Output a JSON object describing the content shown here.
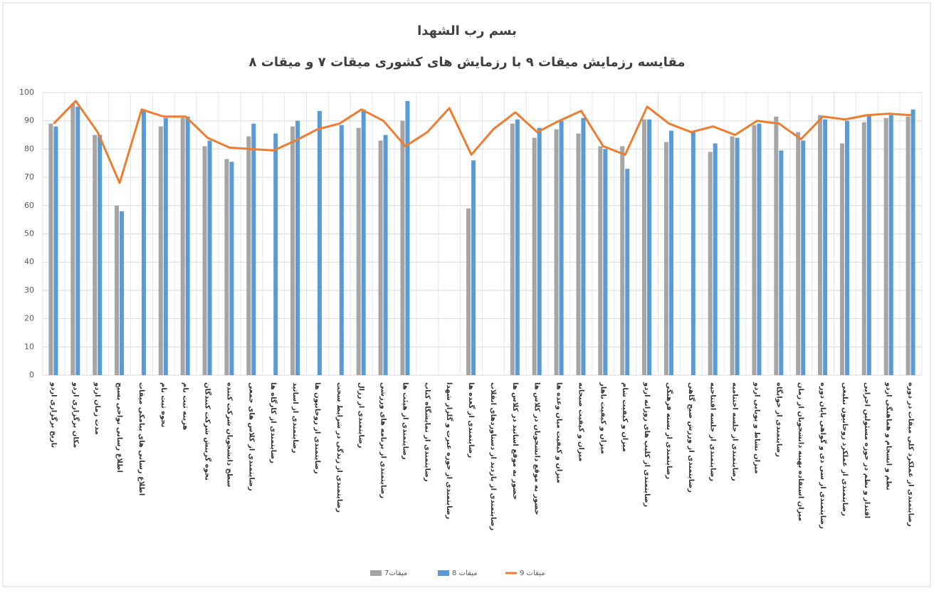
{
  "chart_data": {
    "type": "bar_line",
    "title": "بسم رب الشهدا",
    "subtitle": "مقایسه  رزمایش میقات ۹ با رزمایش های کشوری میقات ۷ و میقات ۸",
    "categories": [
      "تاریخ برگزاری اردو",
      "مکان برگزاری اردو",
      "مدت زمان اردو",
      "اطلاع رسانی نواحی بسیج",
      "اطلاع رسانی های پیامکی میقات",
      "نحوه ثبت نام",
      "هزینه ثبت نام",
      "نحوه گزینش شرکت کنندگان",
      "سطح دانشجویان شرکت کننده",
      "رضایتمندی از کلاس های جمعی",
      "رضایتمندی از کارگاه ها",
      "رضایتمندی از اساتید",
      "رضایتمندی از روحانیون ها",
      "رضایتمندی از زندگی در شرایط سخت",
      "رضایتمندی از رزال",
      "رضایتمندی از برنامه های ورزشی",
      "رضایتمندی از هیئت ها",
      "رضایتمندی از نمایشگاه کتاب",
      "رضایتمندی از حوزه عبرت و گلزار شهدا",
      "رضایتمندی از گعده ها",
      "رضایتمندی از بازدید از دستاوردهای انقلاب",
      "حضور به موقع اساتید در کلاس ها",
      "حضور به موقع دانشجویان در کلاس ها",
      "میزان و کیفیت میان وعده ها",
      "میزان و کیفیت صبحانه",
      "میزان و کیفیت ناهار",
      "میزان و کیفیت شام",
      "رضایتمندی از کلیپ های روزانه اردو",
      "رضایتمندی از بسته فرهنگی",
      "رضایتمندی از ورزش صبح گاهی",
      "رضایتمندی از جلسه افتتاحیه",
      "رضایتمندی از جلسه اختتامیه",
      "میزان نشاط و پویایی اردو",
      "رضایتمندی از خوابگاه",
      "میزان استفاده بهینه دانشجویان از زمان",
      "رضایتمندی از سی دی و گواهی پایان دوره",
      "رضایتمندی از عملکرد روحانیون تبلیغی",
      "اقتدار و نظم در حوزه مسئولین اجرایی",
      "نظم و انسجام و هماهنگی اردو",
      "رضایتمندی از عملکرد کلی میقات در دوره"
    ],
    "series": [
      {
        "name": "میقات7",
        "kind": "bar",
        "color": "#a5a5a5",
        "values": [
          89,
          96,
          85,
          60,
          null,
          88,
          91,
          81,
          76.5,
          84.5,
          null,
          88,
          null,
          null,
          87.5,
          83,
          90,
          null,
          null,
          59,
          null,
          89,
          84,
          87,
          85.5,
          81,
          81,
          90.5,
          82.5,
          null,
          79,
          84.5,
          88.5,
          91.5,
          86,
          92,
          82,
          89.5,
          91,
          91.5
        ]
      },
      {
        "name": "میقات 8",
        "kind": "bar",
        "color": "#5b9bd5",
        "values": [
          88,
          95,
          85,
          58,
          94,
          91,
          91.5,
          83,
          75.5,
          89,
          85.5,
          90,
          93.5,
          88.5,
          94,
          85,
          97,
          null,
          null,
          76,
          null,
          90.5,
          87.5,
          90,
          91,
          80,
          73,
          90.5,
          86.5,
          86,
          82,
          84,
          89,
          79.5,
          83,
          90.5,
          90,
          92,
          92,
          94
        ]
      },
      {
        "name": "میقات 9",
        "kind": "line",
        "color": "#ed7d31",
        "values": [
          89,
          97,
          86,
          68,
          94,
          91.5,
          91.5,
          84,
          80.5,
          80,
          79.5,
          83,
          87,
          89,
          94,
          90,
          81,
          86,
          94.5,
          78,
          87,
          93,
          86,
          90,
          93.5,
          81,
          78,
          95,
          89,
          86,
          88,
          85,
          90,
          89,
          83.5,
          91.5,
          90.5,
          92,
          92.5,
          92
        ]
      }
    ],
    "ylim": [
      0,
      100
    ],
    "yticks": [
      0,
      10,
      20,
      30,
      40,
      50,
      60,
      70,
      80,
      90,
      100
    ],
    "grid": true,
    "legend": "bottom"
  }
}
